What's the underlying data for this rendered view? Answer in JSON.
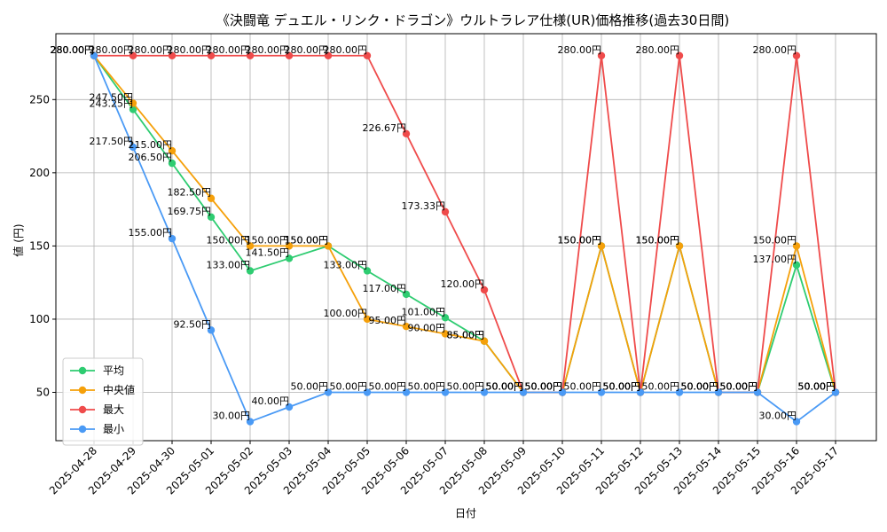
{
  "chart_data": {
    "type": "line",
    "title": "《決闘竜 デュエル・リンク・ドラゴン》ウルトラレア仕様(UR)価格推移(過去30日間)",
    "xlabel": "日付",
    "ylabel": "値 (円)",
    "ylim": [
      17,
      295
    ],
    "yticks": [
      50,
      100,
      150,
      200,
      250
    ],
    "grid": true,
    "legend_position": "lower-left",
    "value_suffix": "円",
    "categories": [
      "2025-04-28",
      "2025-04-29",
      "2025-04-30",
      "2025-05-01",
      "2025-05-02",
      "2025-05-03",
      "2025-05-04",
      "2025-05-05",
      "2025-05-06",
      "2025-05-07",
      "2025-05-08",
      "2025-05-09",
      "2025-05-10",
      "2025-05-11",
      "2025-05-12",
      "2025-05-13",
      "2025-05-14",
      "2025-05-15",
      "2025-05-16",
      "2025-05-17"
    ],
    "series": [
      {
        "name": "平均",
        "color": "#2ecc71",
        "values": [
          280.0,
          243.25,
          206.5,
          169.75,
          133.0,
          141.5,
          150.0,
          133.0,
          117.0,
          101.0,
          85.0,
          50.0,
          50.0,
          150.0,
          50.0,
          150.0,
          50.0,
          50.0,
          137.0,
          50.0
        ]
      },
      {
        "name": "中央値",
        "color": "#f5a00a",
        "values": [
          280.0,
          247.5,
          215.0,
          182.5,
          150.0,
          150.0,
          150.0,
          100.0,
          95.0,
          90.0,
          85.0,
          50.0,
          50.0,
          150.0,
          50.0,
          150.0,
          50.0,
          50.0,
          150.0,
          50.0
        ]
      },
      {
        "name": "最大",
        "color": "#ef4b4b",
        "values": [
          280.0,
          280.0,
          280.0,
          280.0,
          280.0,
          280.0,
          280.0,
          280.0,
          226.67,
          173.33,
          120.0,
          50.0,
          50.0,
          280.0,
          50.0,
          280.0,
          50.0,
          50.0,
          280.0,
          50.0
        ]
      },
      {
        "name": "最小",
        "color": "#4a9af5",
        "values": [
          280.0,
          217.5,
          155.0,
          92.5,
          30.0,
          40.0,
          50.0,
          50.0,
          50.0,
          50.0,
          50.0,
          50.0,
          50.0,
          50.0,
          50.0,
          50.0,
          50.0,
          50.0,
          30.0,
          50.0
        ]
      }
    ]
  }
}
